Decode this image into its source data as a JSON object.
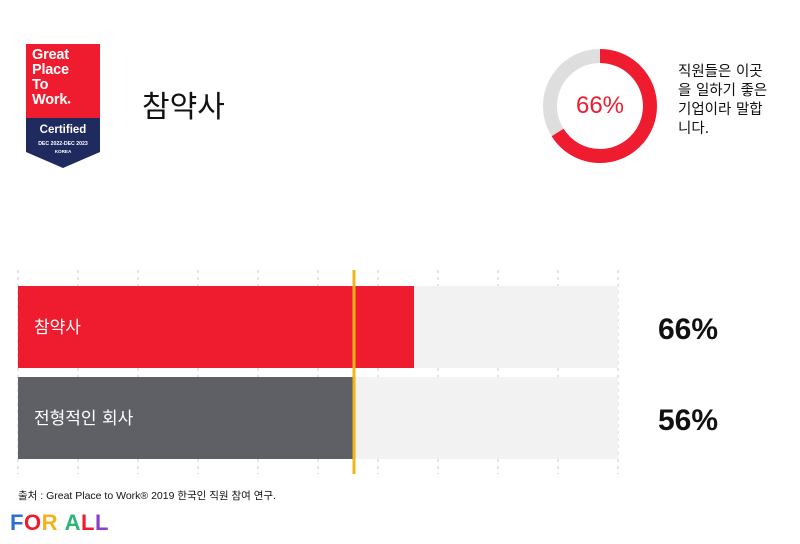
{
  "badge": {
    "line1": "Great",
    "line2": "Place",
    "line3": "To",
    "line4": "Work",
    "certified": "Certified",
    "date_range": "DEC 2022-DEC 2023",
    "country": "KOREA",
    "red": "#ee1c2e",
    "navy": "#1f2a5e"
  },
  "company": {
    "name": "참약사"
  },
  "highlight": {
    "value_label": "66%",
    "value": 66,
    "caption": [
      "직원들은 이곳",
      "을 일하기 좋은",
      "기업이라 말합",
      "니다."
    ]
  },
  "chart_data": {
    "type": "bar",
    "orientation": "horizontal",
    "categories": [
      "참약사",
      "전형적인 회사"
    ],
    "values": [
      66,
      56
    ],
    "value_labels": [
      "66%",
      "56%"
    ],
    "colors": [
      "#ee1c2e",
      "#5f6066"
    ],
    "track_color": "#f2f2f2",
    "reference_value": 56,
    "reference_color": "#f2b418",
    "xlim": [
      0,
      100
    ],
    "grid": true
  },
  "source": "출처 : Great Place to Work® 2019 한국인 직원 참여 연구.",
  "footer": {
    "logo_letters": [
      "F",
      "O",
      "R",
      " ",
      "A",
      "L",
      "L"
    ],
    "logo_colors": [
      "#2b6fd6",
      "#ee1c2e",
      "#f2b418",
      "#ffffff",
      "#2bb673",
      "#ee1c2e",
      "#8b3fc6"
    ]
  }
}
